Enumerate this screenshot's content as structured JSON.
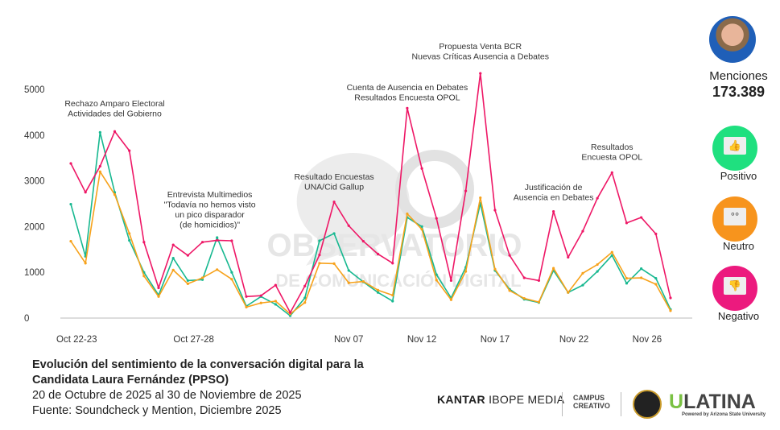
{
  "chart_data": {
    "type": "line",
    "title": "Evolución del sentimiento de la conversación digital para la Candidata Laura Fernández (PPSO)",
    "subtitle": "20 de Octubre de 2025 al 30 de Noviembre de 2025",
    "source": "Fuente: Soundcheck y Mention, Diciembre 2025",
    "xlabel": "",
    "ylabel": "",
    "ylim": [
      0,
      5000
    ],
    "yticks": [
      "0",
      "1000",
      "2000",
      "3000",
      "4000",
      "5000"
    ],
    "yticks_values": [
      0,
      1000,
      2000,
      3000,
      4000,
      5000
    ],
    "xticks": [
      {
        "index": 0.4,
        "label": "Oct 22-23"
      },
      {
        "index": 8.4,
        "label": "Oct 27-28"
      },
      {
        "index": 19,
        "label": "Nov 07"
      },
      {
        "index": 24,
        "label": "Nov 12"
      },
      {
        "index": 29,
        "label": "Nov 17"
      },
      {
        "index": 34.4,
        "label": "Nov 22"
      },
      {
        "index": 39.4,
        "label": "Nov 26"
      }
    ],
    "grid": false,
    "series": [
      {
        "name": "Negativo",
        "color": "#ee1766",
        "values": [
          3380,
          2750,
          3320,
          4080,
          3660,
          1660,
          660,
          1600,
          1370,
          1660,
          1700,
          1690,
          470,
          490,
          720,
          120,
          700,
          1380,
          2540,
          2020,
          1680,
          1400,
          1200,
          4590,
          3270,
          2180,
          820,
          2780,
          5350,
          2360,
          1370,
          880,
          820,
          2330,
          1330,
          1900,
          2620,
          3180,
          2080,
          2200,
          1840,
          440
        ]
      },
      {
        "name": "Positivo",
        "color": "#17b890",
        "values": [
          2490,
          1350,
          4060,
          2750,
          1700,
          1000,
          500,
          1310,
          820,
          840,
          1760,
          1000,
          260,
          470,
          300,
          50,
          440,
          1690,
          1850,
          1040,
          790,
          560,
          370,
          2200,
          2000,
          950,
          440,
          1110,
          2510,
          1040,
          630,
          410,
          340,
          1040,
          560,
          720,
          1020,
          1370,
          760,
          1080,
          870,
          190
        ]
      },
      {
        "name": "Neutro",
        "color": "#f7a21b",
        "values": [
          1680,
          1200,
          3200,
          2700,
          1850,
          920,
          470,
          1050,
          750,
          880,
          1060,
          850,
          240,
          330,
          370,
          90,
          340,
          1200,
          1190,
          770,
          800,
          610,
          500,
          2280,
          1940,
          830,
          400,
          1020,
          2630,
          1070,
          600,
          430,
          350,
          1090,
          560,
          980,
          1170,
          1440,
          870,
          880,
          740,
          160
        ]
      }
    ],
    "annotations": [
      {
        "index": 3,
        "lines": [
          "Rechazo Amparo Electoral",
          "Actividades del Gobierno"
        ]
      },
      {
        "index": 9.5,
        "lines": [
          "Entrevista Multimedios",
          "\"Todavía no hemos visto",
          "un pico disparador",
          "(de homicidios)\""
        ]
      },
      {
        "index": 18,
        "lines": [
          "Resultado Encuestas",
          "UNA/Cid Gallup"
        ]
      },
      {
        "index": 23,
        "lines": [
          "Cuenta de Ausencia en Debates",
          "Resultados Encuesta OPOL"
        ]
      },
      {
        "index": 28,
        "lines": [
          "Propuesta Venta BCR",
          "Nuevas Críticas Ausencia a Debates"
        ]
      },
      {
        "index": 33,
        "lines": [
          "Justificación de",
          "Ausencia en Debates"
        ]
      },
      {
        "index": 37,
        "lines": [
          "Resultados",
          "Encuesta OPOL"
        ]
      }
    ],
    "legend_position": "right"
  },
  "watermark": {
    "line1": "OBSERVATORIO",
    "line2": "DE COMUNICACIÓN DIGITAL"
  },
  "side": {
    "mentions_label": "Menciones",
    "mentions_value": "173.389",
    "positive_label": "Positivo",
    "neutral_label": "Neutro",
    "negative_label": "Negativo",
    "positive_color": "#1fe07f",
    "neutral_color": "#f7941d",
    "negative_color": "#ec1a7e"
  },
  "logos": {
    "kantar_bold": "KANTAR",
    "kantar_rest": " IBOPE MEDIA",
    "campus": "CAMPUS CREATIVO",
    "ulatina_u": "U",
    "ulatina_rest": "LATINA",
    "ulatina_sub": "Powered by Arizona State University"
  }
}
